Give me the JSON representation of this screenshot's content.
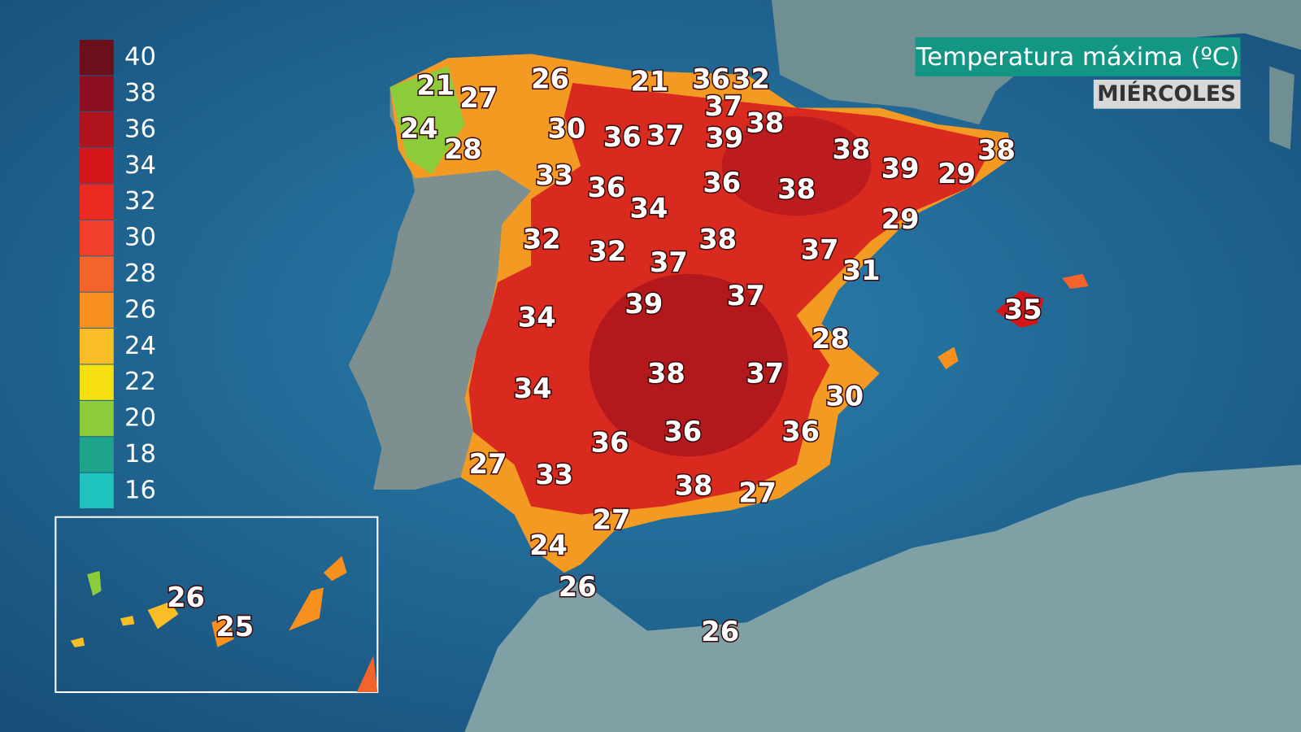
{
  "title": "Temperatura máxima (ºC)",
  "subtitle": "MIÉRCOLES",
  "legend": [
    {
      "value": 40,
      "color": "#6b0f1a"
    },
    {
      "value": 38,
      "color": "#8e1020"
    },
    {
      "value": 36,
      "color": "#b0141c"
    },
    {
      "value": 34,
      "color": "#d2161a"
    },
    {
      "value": 32,
      "color": "#ec2a22"
    },
    {
      "value": 30,
      "color": "#f23f2a"
    },
    {
      "value": 28,
      "color": "#f2642a"
    },
    {
      "value": 26,
      "color": "#f7901e"
    },
    {
      "value": 24,
      "color": "#f9bd25"
    },
    {
      "value": 22,
      "color": "#f6df10"
    },
    {
      "value": 20,
      "color": "#8ccc3a"
    },
    {
      "value": 18,
      "color": "#1fa48c"
    },
    {
      "value": 16,
      "color": "#1ec3bd"
    }
  ],
  "labels": [
    21,
    27,
    26,
    21,
    36,
    32,
    24,
    28,
    30,
    36,
    37,
    37,
    39,
    38,
    38,
    39,
    29,
    38,
    33,
    36,
    34,
    36,
    38,
    29,
    32,
    32,
    37,
    38,
    37,
    31,
    35,
    34,
    39,
    37,
    28,
    34,
    38,
    37,
    30,
    36,
    36,
    36,
    27,
    33,
    38,
    27,
    27,
    24,
    26,
    26,
    26,
    25
  ]
}
